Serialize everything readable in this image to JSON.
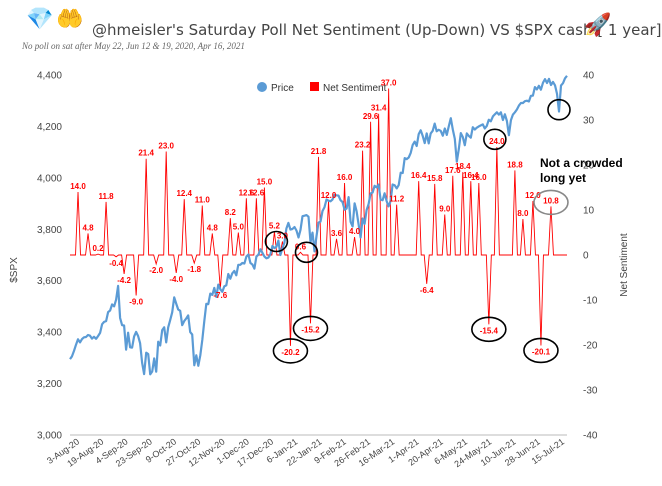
{
  "header": {
    "title": "@hmeisler's Saturday Poll Net Sentiment (Up-Down) VS $SPX  cash [ 1 year]",
    "subtitle": "No poll on sat after May 22, Jun 12 & 19, 2020, Apr 16, 2021",
    "icons": [
      "diamond-icon",
      "hands-icon",
      "rocket-icon"
    ]
  },
  "chart_data": {
    "type": "line",
    "title": "@hmeisler's Saturday Poll Net Sentiment (Up-Down) VS $SPX  cash [ 1 year]",
    "ylabel": "$SPX",
    "y2label": "Net Sentiment",
    "ylim": [
      3000,
      4400
    ],
    "y2lim": [
      -40,
      40
    ],
    "y_ticks": [
      "3,000",
      "3,200",
      "3,400",
      "3,600",
      "3,800",
      "4,000",
      "4,200",
      "4,400"
    ],
    "y2_ticks": [
      "-40",
      "-30",
      "-20",
      "-10",
      "0",
      "10",
      "20",
      "30",
      "40"
    ],
    "x_ticks": [
      "3-Aug-20",
      "19-Aug-20",
      "4-Sep-20",
      "23-Sep-20",
      "9-Oct-20",
      "27-Oct-20",
      "12-Nov-20",
      "1-Dec-20",
      "17-Dec-20",
      "6-Jan-21",
      "22-Jan-21",
      "9-Feb-21",
      "26-Feb-21",
      "16-Mar-21",
      "1-Apr-21",
      "20-Apr-21",
      "6-May-21",
      "24-May-21",
      "10-Jun-21",
      "28-Jun-21",
      "15-Jul-21"
    ],
    "legend": [
      "Price",
      "Net Sentiment"
    ],
    "colors": {
      "price": "#5b9bd5",
      "sentiment": "#ff0000",
      "label": "#ff0000",
      "axis": "#555555"
    },
    "price_series": [
      [
        0,
        3295
      ],
      [
        1,
        3306
      ],
      [
        2,
        3327
      ],
      [
        3,
        3351
      ],
      [
        4,
        3372
      ],
      [
        5,
        3360
      ],
      [
        6,
        3373
      ],
      [
        7,
        3380
      ],
      [
        8,
        3381
      ],
      [
        9,
        3389
      ],
      [
        10,
        3386
      ],
      [
        11,
        3375
      ],
      [
        12,
        3382
      ],
      [
        13,
        3374
      ],
      [
        14,
        3385
      ],
      [
        15,
        3397
      ],
      [
        16,
        3431
      ],
      [
        17,
        3440
      ],
      [
        18,
        3443
      ],
      [
        19,
        3478
      ],
      [
        20,
        3484
      ],
      [
        21,
        3508
      ],
      [
        22,
        3500
      ],
      [
        23,
        3526
      ],
      [
        24,
        3580
      ],
      [
        25,
        3455
      ],
      [
        26,
        3427
      ],
      [
        27,
        3426
      ],
      [
        28,
        3332
      ],
      [
        29,
        3398
      ],
      [
        30,
        3341
      ],
      [
        31,
        3340
      ],
      [
        32,
        3383
      ],
      [
        33,
        3401
      ],
      [
        34,
        3385
      ],
      [
        35,
        3357
      ],
      [
        36,
        3281
      ],
      [
        37,
        3237
      ],
      [
        38,
        3320
      ],
      [
        39,
        3315
      ],
      [
        40,
        3236
      ],
      [
        41,
        3247
      ],
      [
        42,
        3298
      ],
      [
        43,
        3246
      ],
      [
        44,
        3363
      ],
      [
        45,
        3348
      ],
      [
        46,
        3408
      ],
      [
        47,
        3419
      ],
      [
        48,
        3360
      ],
      [
        49,
        3419
      ],
      [
        50,
        3447
      ],
      [
        51,
        3477
      ],
      [
        52,
        3535
      ],
      [
        53,
        3511
      ],
      [
        54,
        3488
      ],
      [
        55,
        3483
      ],
      [
        56,
        3427
      ],
      [
        57,
        3443
      ],
      [
        58,
        3453
      ],
      [
        59,
        3465
      ],
      [
        60,
        3400
      ],
      [
        61,
        3391
      ],
      [
        62,
        3271
      ],
      [
        63,
        3310
      ],
      [
        64,
        3269
      ],
      [
        65,
        3310
      ],
      [
        66,
        3370
      ],
      [
        67,
        3443
      ],
      [
        68,
        3510
      ],
      [
        69,
        3509
      ],
      [
        70,
        3550
      ],
      [
        71,
        3545
      ],
      [
        72,
        3572
      ],
      [
        73,
        3537
      ],
      [
        74,
        3585
      ],
      [
        75,
        3567
      ],
      [
        76,
        3557
      ],
      [
        77,
        3578
      ],
      [
        78,
        3582
      ],
      [
        79,
        3626
      ],
      [
        80,
        3608
      ],
      [
        81,
        3629
      ],
      [
        82,
        3638
      ],
      [
        83,
        3621
      ],
      [
        84,
        3662
      ],
      [
        85,
        3662
      ],
      [
        86,
        3669
      ],
      [
        87,
        3667
      ],
      [
        88,
        3694
      ],
      [
        89,
        3702
      ],
      [
        90,
        3669
      ],
      [
        91,
        3663
      ],
      [
        92,
        3647
      ],
      [
        93,
        3694
      ],
      [
        94,
        3701
      ],
      [
        95,
        3722
      ],
      [
        96,
        3709
      ],
      [
        97,
        3694
      ],
      [
        98,
        3687
      ],
      [
        99,
        3690
      ],
      [
        100,
        3703
      ],
      [
        101,
        3735
      ],
      [
        102,
        3727
      ],
      [
        103,
        3732
      ],
      [
        104,
        3756
      ],
      [
        105,
        3700
      ],
      [
        106,
        3726
      ],
      [
        107,
        3748
      ],
      [
        108,
        3803
      ],
      [
        109,
        3825
      ],
      [
        110,
        3799
      ],
      [
        111,
        3801
      ],
      [
        112,
        3809
      ],
      [
        113,
        3795
      ],
      [
        114,
        3768
      ],
      [
        115,
        3798
      ],
      [
        116,
        3851
      ],
      [
        117,
        3853
      ],
      [
        118,
        3855
      ],
      [
        119,
        3849
      ],
      [
        120,
        3750
      ],
      [
        121,
        3787
      ],
      [
        122,
        3714
      ],
      [
        123,
        3773
      ],
      [
        124,
        3826
      ],
      [
        125,
        3830
      ],
      [
        126,
        3871
      ],
      [
        127,
        3886
      ],
      [
        128,
        3916
      ],
      [
        129,
        3911
      ],
      [
        130,
        3909
      ],
      [
        131,
        3916
      ],
      [
        132,
        3934
      ],
      [
        133,
        3932
      ],
      [
        134,
        3931
      ],
      [
        135,
        3913
      ],
      [
        136,
        3906
      ],
      [
        137,
        3876
      ],
      [
        138,
        3881
      ],
      [
        139,
        3925
      ],
      [
        140,
        3829
      ],
      [
        141,
        3811
      ],
      [
        142,
        3901
      ],
      [
        143,
        3870
      ],
      [
        144,
        3819
      ],
      [
        145,
        3768
      ],
      [
        146,
        3842
      ],
      [
        147,
        3821
      ],
      [
        148,
        3875
      ],
      [
        149,
        3898
      ],
      [
        150,
        3939
      ],
      [
        151,
        3943
      ],
      [
        152,
        3969
      ],
      [
        153,
        3963
      ],
      [
        154,
        3974
      ],
      [
        155,
        3915
      ],
      [
        156,
        3913
      ],
      [
        157,
        3940
      ],
      [
        158,
        3910
      ],
      [
        159,
        3889
      ],
      [
        160,
        3910
      ],
      [
        161,
        3974
      ],
      [
        162,
        3971
      ],
      [
        163,
        3959
      ],
      [
        164,
        3972
      ],
      [
        165,
        4020
      ],
      [
        166,
        4019
      ],
      [
        167,
        4077
      ],
      [
        168,
        4073
      ],
      [
        169,
        4079
      ],
      [
        170,
        4097
      ],
      [
        171,
        4128
      ],
      [
        172,
        4141
      ],
      [
        173,
        4124
      ],
      [
        174,
        4170
      ],
      [
        175,
        4185
      ],
      [
        176,
        4163
      ],
      [
        177,
        4135
      ],
      [
        178,
        4173
      ],
      [
        179,
        4134
      ],
      [
        180,
        4173
      ],
      [
        181,
        4183
      ],
      [
        182,
        4211
      ],
      [
        183,
        4181
      ],
      [
        184,
        4187
      ],
      [
        185,
        4183
      ],
      [
        186,
        4164
      ],
      [
        187,
        4192
      ],
      [
        188,
        4167
      ],
      [
        189,
        4201
      ],
      [
        190,
        4232
      ],
      [
        191,
        4188
      ],
      [
        192,
        4152
      ],
      [
        193,
        4063
      ],
      [
        194,
        4112
      ],
      [
        195,
        4174
      ],
      [
        196,
        4159
      ],
      [
        197,
        4127
      ],
      [
        198,
        4173
      ],
      [
        199,
        4163
      ],
      [
        200,
        4156
      ],
      [
        201,
        4197
      ],
      [
        202,
        4188
      ],
      [
        203,
        4195
      ],
      [
        204,
        4200
      ],
      [
        205,
        4204
      ],
      [
        206,
        4208
      ],
      [
        207,
        4192
      ],
      [
        208,
        4202
      ],
      [
        209,
        4226
      ],
      [
        210,
        4220
      ],
      [
        211,
        4239
      ],
      [
        212,
        4247
      ],
      [
        213,
        4255
      ],
      [
        214,
        4246
      ],
      [
        215,
        4255
      ],
      [
        216,
        4225
      ],
      [
        217,
        4247
      ],
      [
        218,
        4221
      ],
      [
        219,
        4166
      ],
      [
        220,
        4224
      ],
      [
        221,
        4246
      ],
      [
        222,
        4255
      ],
      [
        223,
        4266
      ],
      [
        224,
        4281
      ],
      [
        225,
        4291
      ],
      [
        226,
        4291
      ],
      [
        227,
        4298
      ],
      [
        228,
        4300
      ],
      [
        229,
        4297
      ],
      [
        230,
        4319
      ],
      [
        231,
        4320
      ],
      [
        232,
        4353
      ],
      [
        233,
        4344
      ],
      [
        234,
        4358
      ],
      [
        235,
        4343
      ],
      [
        236,
        4370
      ],
      [
        237,
        4384
      ],
      [
        238,
        4369
      ],
      [
        239,
        4385
      ],
      [
        240,
        4361
      ],
      [
        241,
        4373
      ],
      [
        242,
        4360
      ],
      [
        243,
        4327
      ],
      [
        244,
        4258
      ],
      [
        245,
        4359
      ],
      [
        246,
        4368
      ],
      [
        247,
        4387
      ],
      [
        248,
        4397
      ]
    ],
    "sentiment_points": [
      {
        "t": 4,
        "v": 14.0,
        "label": "14.0"
      },
      {
        "t": 9,
        "v": 4.8,
        "label": "4.8"
      },
      {
        "t": 14,
        "v": 0.2,
        "label": "0.2"
      },
      {
        "t": 18,
        "v": 11.8,
        "label": "11.8"
      },
      {
        "t": 23,
        "v": -0.4,
        "label": "-0.4"
      },
      {
        "t": 27,
        "v": -4.2,
        "label": "-4.2"
      },
      {
        "t": 33,
        "v": -9.0,
        "label": "-9.0"
      },
      {
        "t": 38,
        "v": 21.4,
        "label": "21.4"
      },
      {
        "t": 43,
        "v": -2.0,
        "label": "-2.0"
      },
      {
        "t": 48,
        "v": 23.0,
        "label": "23.0"
      },
      {
        "t": 53,
        "v": -4.0,
        "label": "-4.0"
      },
      {
        "t": 57,
        "v": 12.4,
        "label": "12.4"
      },
      {
        "t": 62,
        "v": -1.8,
        "label": "-1.8"
      },
      {
        "t": 66,
        "v": 11.0,
        "label": "11.0"
      },
      {
        "t": 71,
        "v": 4.8,
        "label": "4.8"
      },
      {
        "t": 75,
        "v": -7.6,
        "label": "-7.6"
      },
      {
        "t": 80,
        "v": 8.2,
        "label": "8.2"
      },
      {
        "t": 84,
        "v": 5.0,
        "label": "5.0"
      },
      {
        "t": 88,
        "v": 12.6,
        "label": "12.6"
      },
      {
        "t": 93,
        "v": 12.6,
        "label": "12.6"
      },
      {
        "t": 97,
        "v": 15.0,
        "label": "15.0"
      },
      {
        "t": 102,
        "v": 5.2,
        "label": "5.2"
      },
      {
        "t": 106,
        "v": 3.0,
        "label": "3.0"
      },
      {
        "t": 110,
        "v": -20.2,
        "label": "-20.2"
      },
      {
        "t": 115,
        "v": 0.6,
        "label": "0.6"
      },
      {
        "t": 120,
        "v": -15.2,
        "label": "-15.2"
      },
      {
        "t": 124,
        "v": 21.8,
        "label": "21.8"
      },
      {
        "t": 129,
        "v": 12.0,
        "label": "12.0"
      },
      {
        "t": 133,
        "v": 3.6,
        "label": "3.6"
      },
      {
        "t": 137,
        "v": 16.0,
        "label": "16.0"
      },
      {
        "t": 142,
        "v": 4.0,
        "label": "4.0"
      },
      {
        "t": 146,
        "v": 23.2,
        "label": "23.2"
      },
      {
        "t": 150,
        "v": 29.6,
        "label": "29.6"
      },
      {
        "t": 154,
        "v": 31.4,
        "label": "31.4"
      },
      {
        "t": 159,
        "v": 37.0,
        "label": "37.0"
      },
      {
        "t": 163,
        "v": 11.2,
        "label": "11.2"
      },
      {
        "t": 174,
        "v": 16.4,
        "label": "16.4"
      },
      {
        "t": 178,
        "v": -6.4,
        "label": "-6.4"
      },
      {
        "t": 182,
        "v": 15.8,
        "label": "15.8"
      },
      {
        "t": 187,
        "v": 9.0,
        "label": "9.0"
      },
      {
        "t": 191,
        "v": 17.6,
        "label": "17.6"
      },
      {
        "t": 196,
        "v": 18.4,
        "label": "18.4"
      },
      {
        "t": 200,
        "v": 16.4,
        "label": "16.4"
      },
      {
        "t": 204,
        "v": 16.0,
        "label": "16.0"
      },
      {
        "t": 209,
        "v": -15.4,
        "label": "-15.4"
      },
      {
        "t": 213,
        "v": 24.0,
        "label": "24.0"
      },
      {
        "t": 222,
        "v": 18.8,
        "label": "18.8"
      },
      {
        "t": 226,
        "v": 8.0,
        "label": "8.0"
      },
      {
        "t": 231,
        "v": 12.0,
        "label": "12.0"
      },
      {
        "t": 235,
        "v": -20.1,
        "label": "-20.1"
      },
      {
        "t": 240,
        "v": 10.8,
        "label": "10.8"
      }
    ],
    "highlight_circles": [
      {
        "t": 110,
        "v": -20.2,
        "axis": "sentiment"
      },
      {
        "t": 120,
        "v": -15.2,
        "axis": "sentiment"
      },
      {
        "t": 209,
        "v": -15.4,
        "axis": "sentiment"
      },
      {
        "t": 235,
        "v": -20.1,
        "axis": "sentiment"
      },
      {
        "t": 240,
        "v": 10.8,
        "axis": "sentiment",
        "style": "grey"
      },
      {
        "t": 103,
        "v": 3.0,
        "axis": "sentiment"
      },
      {
        "t": 118,
        "v": 0.6,
        "axis": "sentiment"
      },
      {
        "t": 212,
        "v": 4150,
        "axis": "price"
      },
      {
        "t": 244,
        "v": 4265,
        "axis": "price"
      }
    ],
    "annotation": {
      "lines": [
        "Not a crowded",
        "long yet"
      ]
    }
  }
}
